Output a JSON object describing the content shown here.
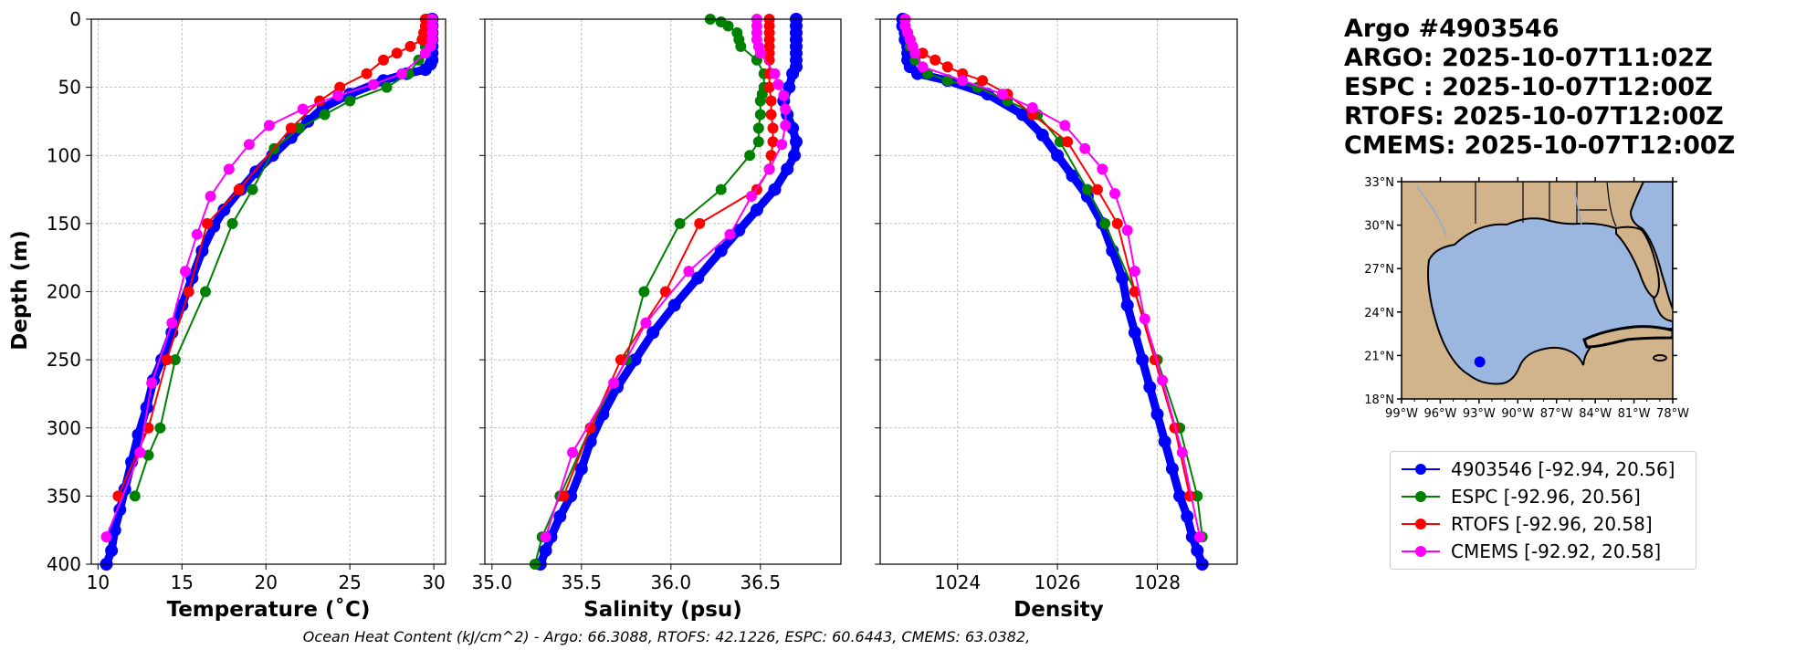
{
  "chart_data": [
    {
      "type": "line",
      "title": "",
      "xlabel": "Temperature (˚C)",
      "ylabel": "Depth (m)",
      "xlim": [
        9.6,
        30.7
      ],
      "ylim": [
        400,
        0
      ],
      "xticks": [
        10,
        15,
        20,
        25,
        30
      ],
      "yticks": [
        0,
        50,
        100,
        150,
        200,
        250,
        300,
        350,
        400
      ],
      "grid": true,
      "series": [
        {
          "name": "4903546 [-92.94, 20.56]",
          "color": "#0000ff",
          "dense": true,
          "x": [
            29.9,
            29.9,
            29.9,
            29.9,
            29.9,
            29.9,
            29.9,
            29.8,
            29.5,
            28.4,
            27.0,
            25.0,
            23.4,
            22.5,
            21.5,
            20.4,
            19.4,
            18.5,
            17.5,
            16.9,
            16.2,
            15.6,
            15.0,
            14.4,
            13.8,
            13.3,
            12.9,
            12.4,
            12.0,
            11.6,
            11.3,
            11.0,
            10.8,
            10.5
          ],
          "y": [
            0,
            5,
            10,
            15,
            20,
            25,
            30,
            33,
            37,
            40,
            45,
            55,
            65,
            75,
            87,
            100,
            112,
            125,
            140,
            152,
            170,
            190,
            210,
            230,
            250,
            265,
            285,
            305,
            325,
            345,
            360,
            375,
            390,
            400
          ]
        },
        {
          "name": "ESPC [-92.96, 20.56]",
          "color": "#008000",
          "dense": false,
          "x": [
            29.6,
            29.6,
            29.6,
            29.5,
            29.1,
            28.5,
            27.2,
            25.0,
            23.5,
            22.0,
            20.5,
            19.2,
            18.0,
            16.4,
            14.6,
            13.7,
            13.0,
            12.2
          ],
          "y": [
            0,
            5,
            10,
            20,
            30,
            40,
            50,
            60,
            70,
            80,
            95,
            125,
            150,
            200,
            250,
            300,
            320,
            350
          ]
        },
        {
          "name": "RTOFS [-92.96, 20.58]",
          "color": "#ff0000",
          "dense": false,
          "x": [
            29.5,
            29.5,
            29.4,
            29.3,
            28.6,
            27.8,
            27.0,
            26.0,
            24.4,
            23.2,
            21.5,
            18.4,
            16.5,
            15.4,
            14.1,
            13.0,
            11.2
          ],
          "y": [
            0,
            5,
            10,
            15,
            20,
            25,
            30,
            40,
            50,
            60,
            80,
            125,
            150,
            200,
            250,
            300,
            350
          ]
        },
        {
          "name": "CMEMS [-92.92, 20.58]",
          "color": "#ff00ff",
          "dense": false,
          "x": [
            29.9,
            29.9,
            29.9,
            29.9,
            29.8,
            29.5,
            28.1,
            26.4,
            24.3,
            22.2,
            20.2,
            19.0,
            17.8,
            16.7,
            15.9,
            15.2,
            14.4,
            13.2,
            12.5,
            10.5
          ],
          "y": [
            0,
            5,
            10,
            15,
            20,
            25,
            40,
            48,
            56,
            66,
            78,
            92,
            110,
            130,
            158,
            185,
            223,
            267,
            318,
            380
          ]
        }
      ]
    },
    {
      "type": "line",
      "title": "",
      "xlabel": "Salinity (psu)",
      "ylabel": "",
      "xlim": [
        34.96,
        36.95
      ],
      "ylim": [
        400,
        0
      ],
      "xticks": [
        35.0,
        35.5,
        36.0,
        36.5
      ],
      "xtick_labels": [
        "35.0",
        "35.5",
        "36.0",
        "36.5"
      ],
      "yticks": [
        0,
        50,
        100,
        150,
        200,
        250,
        300,
        350,
        400
      ],
      "grid": true,
      "series": [
        {
          "name": "4903546 [-92.94, 20.56]",
          "color": "#0000ff",
          "dense": true,
          "x": [
            36.7,
            36.7,
            36.7,
            36.7,
            36.7,
            36.7,
            36.7,
            36.7,
            36.68,
            36.66,
            36.63,
            36.65,
            36.68,
            36.7,
            36.69,
            36.65,
            36.58,
            36.48,
            36.38,
            36.28,
            36.15,
            36.02,
            35.9,
            35.8,
            35.7,
            35.62,
            35.55,
            35.5,
            35.44,
            35.38,
            35.33,
            35.3,
            35.27
          ],
          "y": [
            0,
            5,
            10,
            15,
            20,
            25,
            30,
            35,
            40,
            50,
            60,
            70,
            80,
            90,
            100,
            110,
            125,
            140,
            155,
            170,
            190,
            210,
            230,
            250,
            270,
            290,
            310,
            330,
            350,
            365,
            380,
            390,
            400
          ]
        },
        {
          "name": "ESPC [-92.96, 20.56]",
          "color": "#008000",
          "dense": false,
          "x": [
            36.22,
            36.28,
            36.32,
            36.37,
            36.38,
            36.39,
            36.48,
            36.52,
            36.52,
            36.51,
            36.5,
            36.5,
            36.49,
            36.49,
            36.44,
            36.28,
            36.05,
            35.85,
            35.75,
            35.55,
            35.38,
            35.28,
            35.24
          ],
          "y": [
            0,
            2,
            5,
            10,
            15,
            20,
            30,
            40,
            50,
            55,
            60,
            70,
            80,
            90,
            100,
            125,
            150,
            200,
            250,
            300,
            350,
            380,
            400
          ]
        },
        {
          "name": "RTOFS [-92.96, 20.58]",
          "color": "#ff0000",
          "dense": false,
          "x": [
            36.55,
            36.55,
            36.55,
            36.55,
            36.55,
            36.55,
            36.55,
            36.55,
            36.55,
            36.56,
            36.56,
            36.57,
            36.57,
            36.56,
            36.55,
            36.48,
            36.16,
            35.97,
            35.72,
            35.55,
            35.4
          ],
          "y": [
            0,
            5,
            10,
            15,
            20,
            25,
            30,
            40,
            50,
            60,
            70,
            80,
            90,
            100,
            110,
            125,
            150,
            200,
            250,
            300,
            350
          ]
        },
        {
          "name": "CMEMS [-92.92, 20.58]",
          "color": "#ff00ff",
          "dense": false,
          "x": [
            36.48,
            36.48,
            36.48,
            36.48,
            36.49,
            36.5,
            36.58,
            36.6,
            36.63,
            36.64,
            36.64,
            36.62,
            36.55,
            36.45,
            36.33,
            36.1,
            35.86,
            35.68,
            35.45,
            35.3
          ],
          "y": [
            0,
            5,
            10,
            15,
            20,
            25,
            40,
            48,
            56,
            66,
            78,
            92,
            110,
            130,
            158,
            185,
            223,
            267,
            318,
            380
          ]
        }
      ]
    },
    {
      "type": "line",
      "title": "",
      "xlabel": "Density",
      "ylabel": "",
      "xlim": [
        1022.45,
        1029.6
      ],
      "ylim": [
        400,
        0
      ],
      "xticks": [
        1024,
        1026,
        1028
      ],
      "yticks": [
        0,
        50,
        100,
        150,
        200,
        250,
        300,
        350,
        400
      ],
      "grid": true,
      "series": [
        {
          "name": "4903546 [-92.94, 20.56]",
          "color": "#0000ff",
          "dense": true,
          "x": [
            1022.9,
            1022.9,
            1022.95,
            1022.95,
            1023.0,
            1023.0,
            1023.0,
            1023.05,
            1023.2,
            1023.8,
            1024.6,
            1025.3,
            1025.7,
            1026.0,
            1026.3,
            1026.6,
            1026.9,
            1027.1,
            1027.3,
            1027.4,
            1027.55,
            1027.7,
            1027.85,
            1028.0,
            1028.15,
            1028.3,
            1028.45,
            1028.6,
            1028.7,
            1028.8,
            1028.9
          ],
          "y": [
            0,
            5,
            10,
            15,
            20,
            25,
            30,
            35,
            40,
            45,
            55,
            70,
            85,
            100,
            115,
            130,
            150,
            170,
            190,
            210,
            230,
            250,
            270,
            290,
            310,
            330,
            350,
            365,
            380,
            390,
            400
          ]
        },
        {
          "name": "ESPC [-92.96, 20.56]",
          "color": "#008000",
          "dense": false,
          "x": [
            1022.95,
            1022.95,
            1023.0,
            1023.05,
            1023.15,
            1023.4,
            1023.8,
            1024.4,
            1025.0,
            1025.6,
            1026.05,
            1026.6,
            1026.95,
            1027.55,
            1028.0,
            1028.45,
            1028.8,
            1028.9
          ],
          "y": [
            0,
            5,
            10,
            20,
            30,
            40,
            45,
            50,
            60,
            70,
            90,
            125,
            150,
            200,
            250,
            300,
            350,
            380
          ]
        },
        {
          "name": "RTOFS [-92.96, 20.58]",
          "color": "#ff0000",
          "dense": false,
          "x": [
            1022.95,
            1022.95,
            1023.0,
            1023.05,
            1023.1,
            1023.3,
            1023.55,
            1023.8,
            1024.1,
            1024.5,
            1025.0,
            1025.5,
            1026.2,
            1026.8,
            1027.2,
            1027.55,
            1027.95,
            1028.35,
            1028.65
          ],
          "y": [
            0,
            5,
            10,
            15,
            20,
            25,
            30,
            35,
            40,
            45,
            55,
            70,
            90,
            125,
            150,
            200,
            250,
            300,
            350
          ]
        },
        {
          "name": "CMEMS [-92.92, 20.58]",
          "color": "#ff00ff",
          "dense": false,
          "x": [
            1022.95,
            1022.95,
            1023.0,
            1023.05,
            1023.1,
            1023.15,
            1023.3,
            1024.1,
            1024.9,
            1025.5,
            1026.15,
            1026.55,
            1026.9,
            1027.15,
            1027.4,
            1027.55,
            1027.75,
            1028.1,
            1028.5,
            1028.85
          ],
          "y": [
            0,
            5,
            10,
            15,
            20,
            25,
            35,
            45,
            55,
            65,
            78,
            95,
            110,
            128,
            155,
            185,
            220,
            265,
            318,
            380
          ]
        }
      ]
    }
  ],
  "map": {
    "lon_ticks": [
      "99°W",
      "96°W",
      "93°W",
      "90°W",
      "87°W",
      "84°W",
      "81°W",
      "78°W"
    ],
    "lat_ticks": [
      "33°N",
      "30°N",
      "27°N",
      "24°N",
      "21°N",
      "18°N"
    ],
    "lon_range": [
      -99,
      -78
    ],
    "lat_range": [
      18,
      33
    ],
    "float_position": {
      "lon": -92.94,
      "lat": 20.56
    },
    "land_color": "#d2b48c",
    "water_color": "#9bb7e0",
    "float_color": "#0000ff"
  },
  "header": {
    "lines": [
      "Argo #4903546",
      "ARGO: 2025-10-07T11:02Z",
      "ESPC : 2025-10-07T12:00Z",
      "RTOFS: 2025-10-07T12:00Z",
      "CMEMS: 2025-10-07T12:00Z"
    ]
  },
  "legend": {
    "items": [
      {
        "label": "4903546 [-92.94, 20.56]",
        "color": "#0000ff"
      },
      {
        "label": "ESPC [-92.96, 20.56]",
        "color": "#008000"
      },
      {
        "label": "RTOFS [-92.96, 20.58]",
        "color": "#ff0000"
      },
      {
        "label": "CMEMS [-92.92, 20.58]",
        "color": "#ff00ff"
      }
    ]
  },
  "footer": {
    "text": "Ocean Heat Content (kJ/cm^2) - Argo: 66.3088,  RTOFS: 42.1226,  ESPC: 60.6443,  CMEMS: 63.0382,"
  }
}
